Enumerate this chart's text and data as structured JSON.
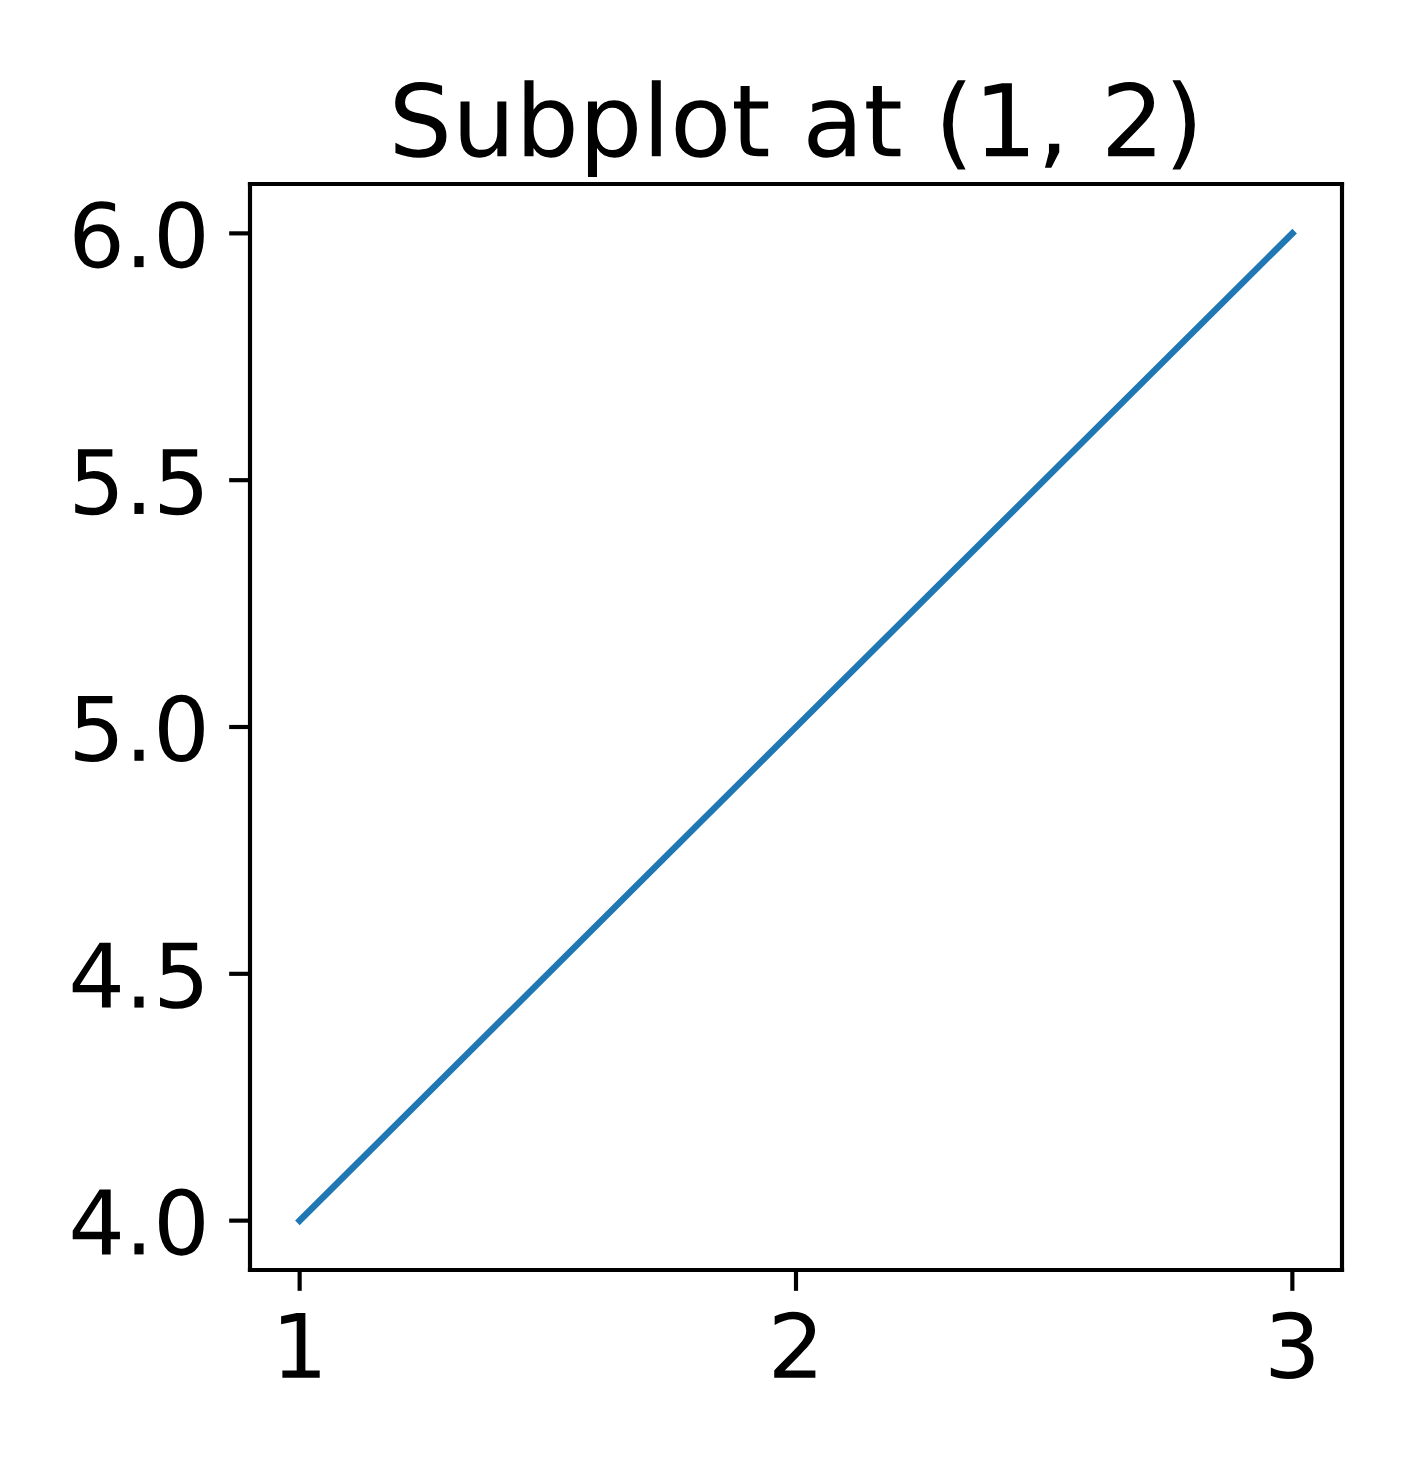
{
  "chart_data": {
    "type": "line",
    "title": "Subplot at (1, 2)",
    "x": [
      1,
      2,
      3
    ],
    "series": [
      {
        "color": "#1f77b4",
        "values": [
          4,
          5,
          6
        ]
      }
    ],
    "xlim": [
      0.9,
      3.1
    ],
    "ylim": [
      3.9,
      6.1
    ],
    "xticks": [
      1,
      2,
      3
    ],
    "yticks": [
      {
        "value": 4,
        "label": "4.0"
      },
      {
        "value": 4.5,
        "label": "4.5"
      },
      {
        "value": 5,
        "label": "5.0"
      },
      {
        "value": 5.5,
        "label": "5.5"
      },
      {
        "value": 6,
        "label": "6.0"
      }
    ],
    "grid": false,
    "line_style": "solid",
    "marker": "none"
  }
}
